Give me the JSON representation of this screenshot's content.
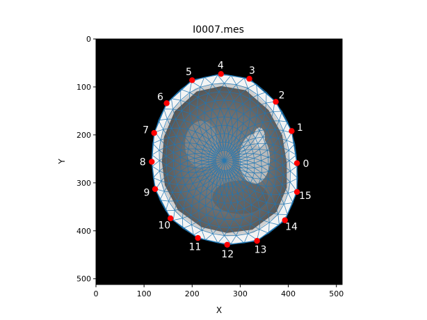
{
  "chart_data": {
    "type": "scatter",
    "title": "I0007.mes",
    "xlabel": "X",
    "ylabel": "Y",
    "xlim": [
      0,
      512
    ],
    "ylim": [
      512,
      0
    ],
    "x_ticks": [
      0,
      100,
      200,
      300,
      400,
      500
    ],
    "y_ticks": [
      0,
      100,
      200,
      300,
      400,
      500
    ],
    "image_background": "#000000",
    "mesh_color": "#1f77b4",
    "marker_color": "#ff0000",
    "label_color": "#ffffff",
    "points": [
      {
        "label": "0",
        "x": 418,
        "y": 259
      },
      {
        "label": "1",
        "x": 407,
        "y": 192
      },
      {
        "label": "2",
        "x": 374,
        "y": 131
      },
      {
        "label": "3",
        "x": 319,
        "y": 83
      },
      {
        "label": "4",
        "x": 260,
        "y": 73
      },
      {
        "label": "5",
        "x": 200,
        "y": 86
      },
      {
        "label": "6",
        "x": 147,
        "y": 134
      },
      {
        "label": "7",
        "x": 121,
        "y": 196
      },
      {
        "label": "8",
        "x": 116,
        "y": 256
      },
      {
        "label": "9",
        "x": 123,
        "y": 313
      },
      {
        "label": "10",
        "x": 155,
        "y": 374
      },
      {
        "label": "11",
        "x": 212,
        "y": 415
      },
      {
        "label": "12",
        "x": 273,
        "y": 429
      },
      {
        "label": "13",
        "x": 335,
        "y": 421
      },
      {
        "label": "14",
        "x": 393,
        "y": 378
      },
      {
        "label": "15",
        "x": 418,
        "y": 319
      }
    ]
  }
}
